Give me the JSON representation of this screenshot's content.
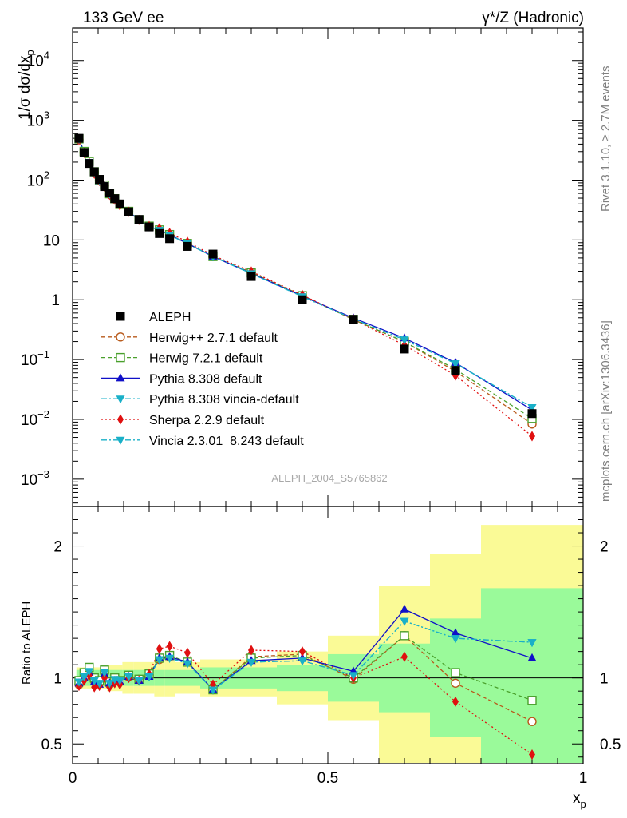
{
  "header": {
    "left": "133 GeV ee",
    "right": "γ*/Z (Hadronic)"
  },
  "side_labels": {
    "rivet": "Rivet 3.1.10, ≥ 2.7M events",
    "mcplots": "mcplots.cern.ch [arXiv:1306.3436]"
  },
  "watermark": "ALEPH_2004_S5765862",
  "colors": {
    "aleph": "#000000",
    "herwigpp": "#b85a1b",
    "herwig7": "#4aa02c",
    "pythia": "#1010c8",
    "vincia": "#1ab0c8",
    "sherpa": "#e01010",
    "band_inner": "#9afa9a",
    "band_outer": "#fafa96"
  },
  "chart_data": [
    {
      "type": "scatter",
      "name": "main",
      "ylabel_main": "1/σ dσ/dx",
      "ylabel_sub": "p",
      "yscale": "log",
      "ylim": [
        0.00035,
        35000
      ],
      "xlim": [
        0,
        1
      ],
      "y_ticks": [
        {
          "value": 0.001,
          "base": "10",
          "exp": "−3"
        },
        {
          "value": 0.01,
          "base": "10",
          "exp": "−2"
        },
        {
          "value": 0.1,
          "base": "10",
          "exp": "−1"
        },
        {
          "value": 1,
          "base": "1",
          "exp": ""
        },
        {
          "value": 10,
          "base": "10",
          "exp": ""
        },
        {
          "value": 100,
          "base": "10",
          "exp": "2"
        },
        {
          "value": 1000,
          "base": "10",
          "exp": "3"
        },
        {
          "value": 10000,
          "base": "10",
          "exp": "4"
        }
      ],
      "x": [
        0.0125,
        0.0225,
        0.0325,
        0.0425,
        0.0525,
        0.0625,
        0.0725,
        0.0825,
        0.0925,
        0.11,
        0.13,
        0.15,
        0.17,
        0.19,
        0.225,
        0.275,
        0.35,
        0.45,
        0.55,
        0.65,
        0.75,
        0.9
      ],
      "bin_edges": [
        0.0075,
        0.0175,
        0.0275,
        0.0375,
        0.0475,
        0.0575,
        0.0675,
        0.0775,
        0.0875,
        0.0975,
        0.12,
        0.14,
        0.16,
        0.18,
        0.2,
        0.25,
        0.3,
        0.4,
        0.5,
        0.6,
        0.7,
        0.8,
        1.0
      ],
      "data": {
        "name": "ALEPH",
        "values": [
          500,
          290,
          190,
          138,
          103,
          78,
          61,
          49,
          40,
          29.5,
          22,
          16.5,
          12.8,
          10.5,
          7.8,
          5.8,
          2.45,
          1.0,
          0.47,
          0.15,
          0.066,
          0.0125
        ],
        "uncertainty_inner": [
          0.06,
          0.06,
          0.06,
          0.06,
          0.06,
          0.06,
          0.06,
          0.06,
          0.06,
          0.06,
          0.06,
          0.06,
          0.06,
          0.06,
          0.06,
          0.08,
          0.08,
          0.1,
          0.18,
          0.26,
          0.45,
          0.68
        ],
        "uncertainty_outer": [
          0.08,
          0.08,
          0.08,
          0.08,
          0.08,
          0.08,
          0.1,
          0.1,
          0.1,
          0.12,
          0.12,
          0.12,
          0.14,
          0.14,
          0.12,
          0.14,
          0.14,
          0.2,
          0.32,
          0.7,
          0.94,
          1.16
        ]
      },
      "series": [
        {
          "name": "Herwig++ 2.7.1 default",
          "key": "herwigpp",
          "marker": "circle-open",
          "dash": "5,3",
          "ratio": [
            0.95,
            1.0,
            1.07,
            0.98,
            0.96,
            1.04,
            0.95,
            0.98,
            0.97,
            1.01,
            0.99,
            1.02,
            1.14,
            1.16,
            1.12,
            0.91,
            1.16,
            1.18,
            0.99,
            1.32,
            0.96,
            0.67
          ]
        },
        {
          "name": "Herwig 7.2.1 default",
          "key": "herwig7",
          "marker": "square-open",
          "dash": "5,3",
          "ratio": [
            0.98,
            1.04,
            1.08,
            1.0,
            0.98,
            1.06,
            0.97,
            1.0,
            0.98,
            1.02,
            0.99,
            1.03,
            1.15,
            1.17,
            1.12,
            0.91,
            1.15,
            1.17,
            1.0,
            1.32,
            1.04,
            0.83
          ]
        },
        {
          "name": "Pythia 8.308 default",
          "key": "pythia",
          "marker": "triangle-up",
          "dash": "",
          "ratio": [
            0.96,
            1.0,
            1.04,
            0.97,
            0.95,
            1.03,
            0.96,
            0.98,
            0.97,
            1.01,
            0.98,
            1.01,
            1.15,
            1.16,
            1.12,
            0.91,
            1.13,
            1.15,
            1.05,
            1.52,
            1.34,
            1.15
          ]
        },
        {
          "name": "Pythia 8.308 vincia-default",
          "key": "vincia",
          "marker": "triangle-down",
          "dash": "7,3,2,3",
          "ratio": [
            0.97,
            1.01,
            1.05,
            0.98,
            0.96,
            1.04,
            0.96,
            0.99,
            0.98,
            1.01,
            0.98,
            1.01,
            1.14,
            1.15,
            1.11,
            0.91,
            1.12,
            1.13,
            1.02,
            1.43,
            1.3,
            1.27
          ]
        },
        {
          "name": "Sherpa 2.2.9 default",
          "key": "sherpa",
          "marker": "diamond",
          "dash": "2,3",
          "ratio": [
            0.94,
            0.98,
            1.02,
            0.93,
            0.94,
            1.0,
            0.93,
            0.96,
            0.95,
            1.0,
            0.98,
            1.03,
            1.22,
            1.24,
            1.19,
            0.95,
            1.21,
            1.2,
            1.0,
            1.16,
            0.82,
            0.42
          ]
        },
        {
          "name": "Vincia 2.3.01_8.243 default",
          "key": "vincia",
          "marker": "triangle-down",
          "dash": "7,3,2,3",
          "ratio": [
            0.97,
            1.01,
            1.05,
            0.98,
            0.96,
            1.04,
            0.96,
            0.99,
            0.98,
            1.01,
            0.98,
            1.01,
            1.14,
            1.15,
            1.11,
            0.91,
            1.12,
            1.13,
            1.02,
            1.43,
            1.3,
            1.27
          ]
        }
      ]
    },
    {
      "type": "line",
      "name": "ratio",
      "ylabel": "Ratio to ALEPH",
      "xlabel_main": "x",
      "xlabel_sub": "p",
      "ylim": [
        0.35,
        2.3
      ],
      "xlim": [
        0,
        1
      ],
      "y_ticks": [
        {
          "value": 0.5,
          "label": "0.5"
        },
        {
          "value": 1,
          "label": "1"
        },
        {
          "value": 2,
          "label": "2"
        }
      ],
      "x_ticks": [
        {
          "value": 0,
          "label": "0"
        },
        {
          "value": 0.5,
          "label": "0.5"
        },
        {
          "value": 1,
          "label": "1"
        }
      ]
    }
  ]
}
